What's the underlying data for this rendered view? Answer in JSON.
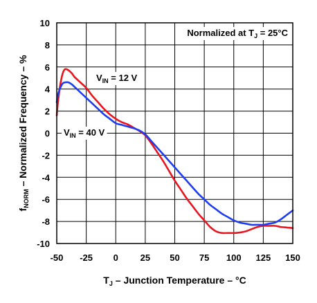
{
  "chart_data": {
    "type": "line",
    "annotation": {
      "text": "Normalized at T",
      "sub": "J",
      "tail": " = 25°C"
    },
    "xlabel": {
      "main": "T",
      "sub": "J",
      "tail": " – Junction Temperature – °C"
    },
    "ylabel": {
      "main": "f",
      "sub": "NORM",
      "tail": " – Normalized Frequency – %"
    },
    "xlim": [
      -50,
      150
    ],
    "ylim": [
      -10,
      10
    ],
    "x_ticks": [
      -50,
      -25,
      0,
      25,
      50,
      75,
      100,
      125,
      150
    ],
    "y_ticks": [
      -10,
      -8,
      -6,
      -4,
      -2,
      0,
      2,
      4,
      6,
      8,
      10
    ],
    "grid": true,
    "series": [
      {
        "name": "V_IN = 12 V",
        "label": {
          "main": "V",
          "sub": "IN",
          "tail": " = 12 V"
        },
        "color": "#e8141e",
        "x": [
          -50,
          -49,
          -47,
          -45,
          -43,
          -40,
          -37,
          -35,
          -30,
          -25,
          -20,
          -15,
          -10,
          -5,
          0,
          5,
          10,
          15,
          20,
          25,
          30,
          35,
          40,
          45,
          50,
          55,
          60,
          65,
          70,
          75,
          80,
          85,
          90,
          95,
          100,
          105,
          110,
          115,
          120,
          125,
          130,
          135,
          140,
          145,
          150
        ],
        "y": [
          1.6,
          2.8,
          4.4,
          5.4,
          5.8,
          5.7,
          5.4,
          5.1,
          4.6,
          4.1,
          3.4,
          2.8,
          2.2,
          1.7,
          1.3,
          1.0,
          0.8,
          0.5,
          0.2,
          -0.2,
          -0.9,
          -1.7,
          -2.5,
          -3.4,
          -4.3,
          -5.1,
          -5.9,
          -6.6,
          -7.3,
          -7.9,
          -8.5,
          -8.9,
          -9.05,
          -9.05,
          -9.05,
          -9.0,
          -8.9,
          -8.7,
          -8.5,
          -8.4,
          -8.4,
          -8.4,
          -8.5,
          -8.55,
          -8.6
        ]
      },
      {
        "name": "V_IN = 40 V",
        "label": {
          "main": "V",
          "sub": "IN",
          "tail": " = 40 V"
        },
        "color": "#1e3cf0",
        "x": [
          -50,
          -49,
          -47,
          -45,
          -43,
          -40,
          -37,
          -35,
          -30,
          -25,
          -20,
          -15,
          -10,
          -5,
          0,
          5,
          10,
          15,
          20,
          25,
          30,
          35,
          40,
          45,
          50,
          55,
          60,
          65,
          70,
          75,
          80,
          85,
          90,
          95,
          100,
          105,
          110,
          115,
          120,
          125,
          130,
          135,
          140,
          145,
          150
        ],
        "y": [
          2.8,
          3.5,
          4.1,
          4.5,
          4.6,
          4.6,
          4.4,
          4.2,
          3.7,
          3.2,
          2.7,
          2.2,
          1.7,
          1.3,
          0.9,
          0.75,
          0.6,
          0.45,
          0.25,
          -0.1,
          -0.7,
          -1.3,
          -1.9,
          -2.5,
          -3.1,
          -3.7,
          -4.3,
          -4.9,
          -5.5,
          -6.0,
          -6.5,
          -6.9,
          -7.3,
          -7.6,
          -7.9,
          -8.1,
          -8.2,
          -8.3,
          -8.3,
          -8.3,
          -8.2,
          -8.1,
          -7.8,
          -7.4,
          -7.0
        ]
      }
    ]
  }
}
